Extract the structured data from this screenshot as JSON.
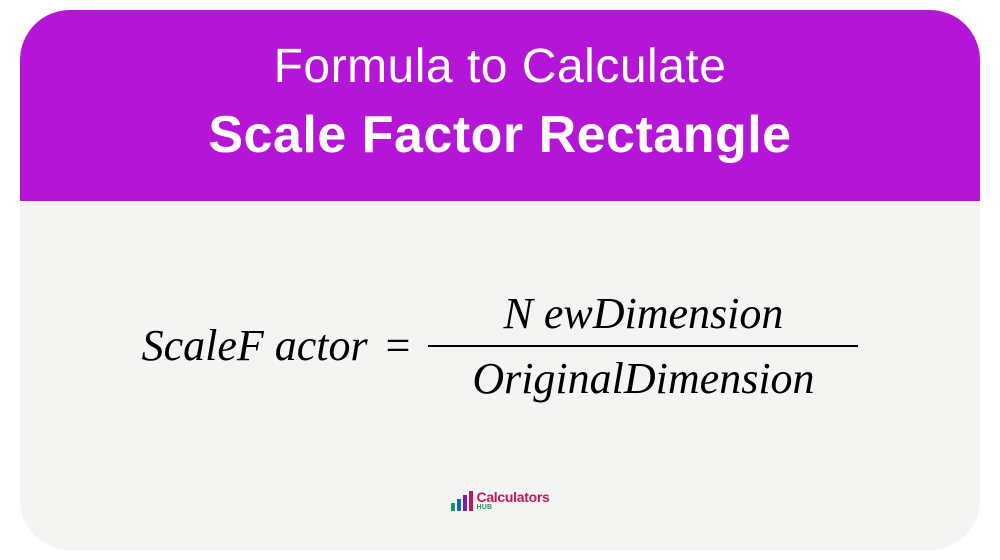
{
  "card": {
    "background_color": "#f4f4f2",
    "border_radius": 50
  },
  "header": {
    "background_color": "#b515d6",
    "text_color": "#ffffff",
    "line1": "Formula to Calculate",
    "line1_fontsize": 48,
    "line1_weight": 400,
    "line2": "Scale Factor Rectangle",
    "line2_fontsize": 52,
    "line2_weight": 700
  },
  "formula": {
    "type": "equation",
    "font_family": "Times New Roman",
    "font_style": "italic",
    "fontsize": 44,
    "color": "#000000",
    "lhs": "ScaleF actor",
    "equals": "=",
    "numerator": "N ewDimension",
    "denominator": "OriginalDimension",
    "fraction_bar_color": "#000000",
    "fraction_bar_min_width": 430
  },
  "footer": {
    "logo": {
      "brand": "Calculators",
      "sub": "HUB",
      "brand_color": "#c2185b",
      "sub_color": "#1a9b5e",
      "bars": [
        {
          "height": 8,
          "color": "#1a9b5e"
        },
        {
          "height": 12,
          "color": "#1565c0"
        },
        {
          "height": 16,
          "color": "#7b1fa2"
        },
        {
          "height": 20,
          "color": "#c2185b"
        }
      ]
    }
  }
}
